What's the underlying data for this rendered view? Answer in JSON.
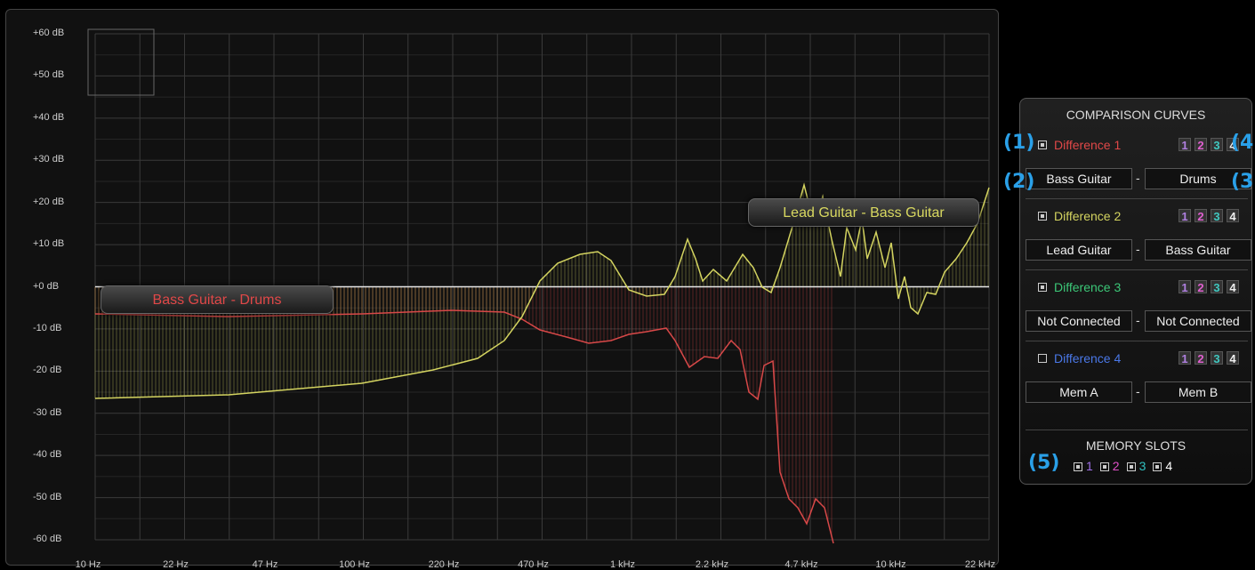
{
  "graph": {
    "y_labels": [
      "+60 dB",
      "+50 dB",
      "+40 dB",
      "+30 dB",
      "+20 dB",
      "+10 dB",
      "+0 dB",
      "-10 dB",
      "-20 dB",
      "-30 dB",
      "-40 dB",
      "-50 dB",
      "-60 dB"
    ],
    "x_labels": [
      "10 Hz",
      "22 Hz",
      "47 Hz",
      "100 Hz",
      "220 Hz",
      "470 Hz",
      "1 kHz",
      "2.2 kHz",
      "4.7 kHz",
      "10 kHz",
      "22 kHz"
    ],
    "curve_red_label": "Bass Guitar - Drums",
    "curve_yellow_label": "Lead Guitar - Bass Guitar",
    "colors": {
      "red": "#d84848",
      "yellow": "#d4d460",
      "grid": "#3a3a3a",
      "zero": "#e8e8e8"
    }
  },
  "panel": {
    "title": "COMPARISON CURVES",
    "differences": [
      {
        "label": "Difference 1",
        "color": "#e04848",
        "checked": true,
        "left": "Bass Guitar",
        "right": "Drums"
      },
      {
        "label": "Difference 2",
        "color": "#d4d460",
        "checked": true,
        "left": "Lead Guitar",
        "right": "Bass Guitar"
      },
      {
        "label": "Difference 3",
        "color": "#3cc878",
        "checked": true,
        "left": "Not Connected",
        "right": "Not Connected"
      },
      {
        "label": "Difference 4",
        "color": "#4a78e8",
        "checked": false,
        "left": "Mem A",
        "right": "Mem B"
      }
    ],
    "dash": "-",
    "mem_icon_labels": [
      "1",
      "2",
      "3",
      "4"
    ],
    "mem_icon_colors": [
      "#b080e0",
      "#e060d0",
      "#40c8c0",
      "#f0f0f0"
    ],
    "memory_slots_title": "MEMORY SLOTS",
    "slots": [
      {
        "label": "1",
        "color": "#a070e8"
      },
      {
        "label": "2",
        "color": "#e050c8"
      },
      {
        "label": "3",
        "color": "#30c0c0"
      },
      {
        "label": "4",
        "color": "#ffffff"
      }
    ]
  },
  "annotations": [
    "(1)",
    "(2)",
    "(3)",
    "(4)",
    "(5)"
  ]
}
